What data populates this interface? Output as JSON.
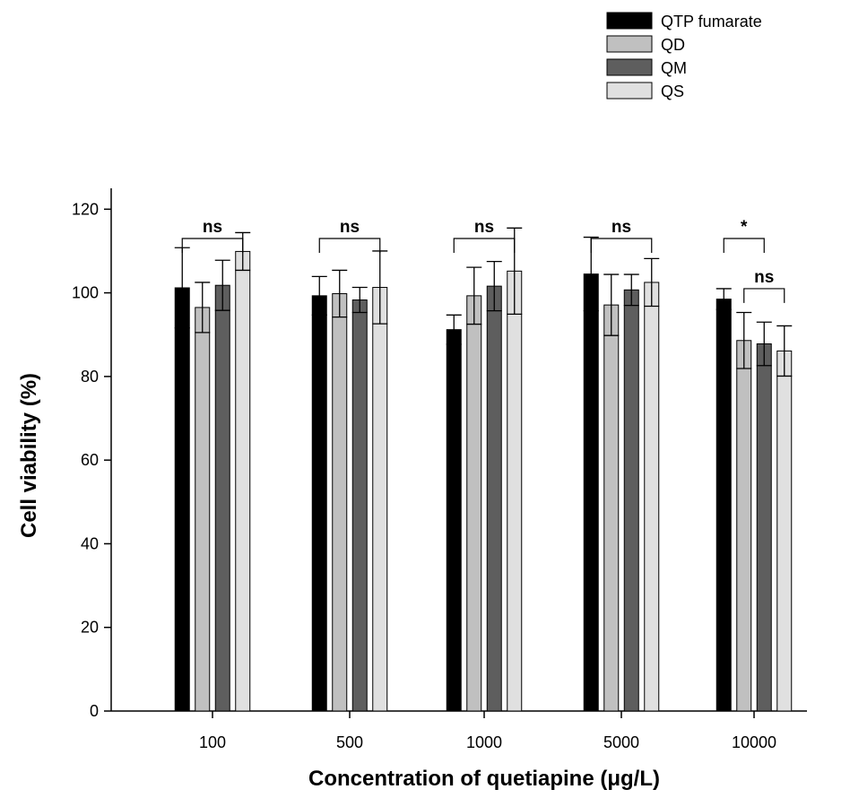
{
  "chart_data": {
    "type": "bar",
    "title": "",
    "xlabel": "Concentration of quetiapine (μg/L)",
    "ylabel": "Cell viability (%)",
    "ylim": [
      0,
      125
    ],
    "yticks": [
      0,
      20,
      40,
      60,
      80,
      100,
      120
    ],
    "categories": [
      "100",
      "500",
      "1000",
      "5000",
      "10000"
    ],
    "grid": false,
    "legend_position": "top-right",
    "series": [
      {
        "name": "QTP fumarate",
        "color": "#000000",
        "values": [
          101.2,
          99.3,
          91.2,
          104.5,
          98.5
        ],
        "errors": [
          9.6,
          4.6,
          3.5,
          8.8,
          2.5
        ]
      },
      {
        "name": "QD",
        "color": "#c0c0c0",
        "values": [
          96.5,
          99.8,
          99.3,
          97.1,
          88.6
        ],
        "errors": [
          6.0,
          5.6,
          6.8,
          7.3,
          6.7
        ]
      },
      {
        "name": "QM",
        "color": "#5e5e5e",
        "values": [
          101.8,
          98.3,
          101.6,
          100.7,
          87.8
        ],
        "errors": [
          6.0,
          3.0,
          5.9,
          3.7,
          5.2
        ]
      },
      {
        "name": "QS",
        "color": "#e0e0e0",
        "values": [
          109.9,
          101.3,
          105.2,
          102.5,
          86.1
        ],
        "errors": [
          4.5,
          8.7,
          10.3,
          5.7,
          6.0
        ]
      }
    ],
    "annotations": [
      {
        "label": "ns",
        "category": 0,
        "from_series": 0,
        "to_series": 3,
        "level": 113
      },
      {
        "label": "ns",
        "category": 1,
        "from_series": 0,
        "to_series": 3,
        "level": 113
      },
      {
        "label": "ns",
        "category": 2,
        "from_series": 0,
        "to_series": 3,
        "level": 113
      },
      {
        "label": "ns",
        "category": 3,
        "from_series": 0,
        "to_series": 3,
        "level": 113
      },
      {
        "label": "*",
        "category": 4,
        "from_series": 0,
        "to_series": 2,
        "level": 113
      },
      {
        "label": "ns",
        "category": 4,
        "from_series": 1,
        "to_series": 3,
        "level": 101
      }
    ]
  }
}
